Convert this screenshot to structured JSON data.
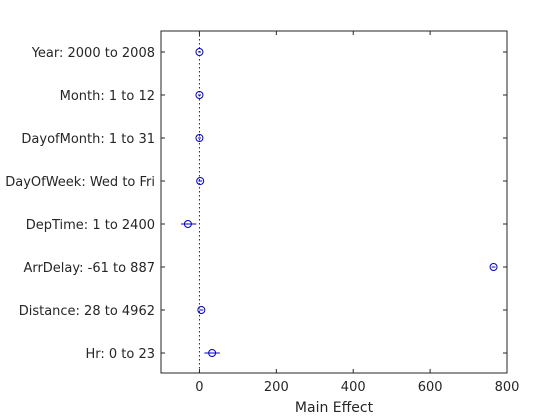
{
  "chart_data": {
    "type": "scatter",
    "title": "",
    "xlabel": "Main Effect",
    "ylabel": "",
    "xlim": [
      -100,
      800
    ],
    "xticks": [
      0,
      200,
      400,
      600,
      800
    ],
    "reference_line_x": 0,
    "grid": false,
    "marker_color": "#0000cc",
    "errorbar_color": "#0000cc",
    "points": [
      {
        "label": "Year: 2000 to 2008",
        "value": 0,
        "lower": -4,
        "upper": 4
      },
      {
        "label": "Month: 1 to 12",
        "value": 0,
        "lower": -4,
        "upper": 4
      },
      {
        "label": "DayofMonth: 1 to 31",
        "value": 0,
        "lower": -4,
        "upper": 4
      },
      {
        "label": "DayOfWeek: Wed to Fri",
        "value": 2,
        "lower": -3,
        "upper": 7
      },
      {
        "label": "DepTime: 1 to 2400",
        "value": -30,
        "lower": -48,
        "upper": -8
      },
      {
        "label": "ArrDelay: -61 to 887",
        "value": 765,
        "lower": 760,
        "upper": 770
      },
      {
        "label": "Distance: 28 to 4962",
        "value": 5,
        "lower": 0,
        "upper": 10
      },
      {
        "label": "Hr: 0 to 23",
        "value": 33,
        "lower": 13,
        "upper": 53
      }
    ]
  }
}
